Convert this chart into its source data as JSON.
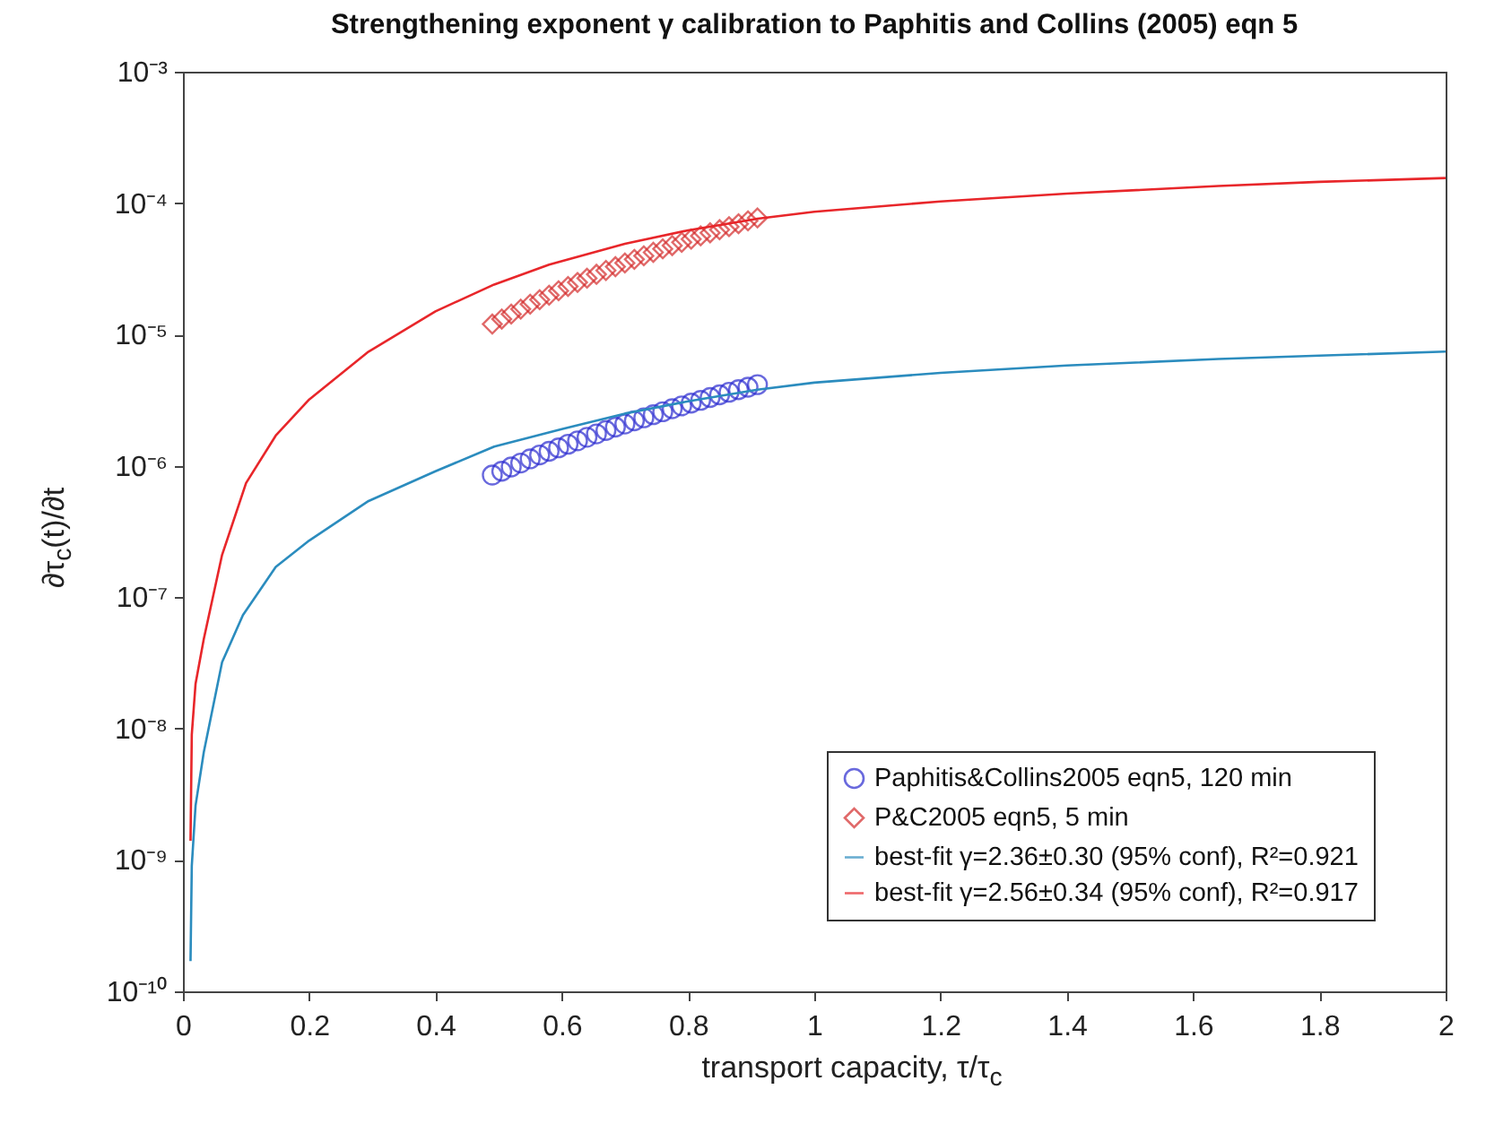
{
  "chart_data": {
    "type": "scatter",
    "title": "Strengthening exponent γ calibration to Paphitis and Collins (2005) eqn 5",
    "xlabel": "transport capacity, τ/τ$_{c}$",
    "ylabel": "∂τ$_{c}$(t)/∂t",
    "log": "y",
    "grid": false,
    "legend": "bottom right",
    "xlim": [
      0,
      2
    ],
    "xticks": [
      0,
      0.2,
      0.4,
      0.6,
      0.8,
      1,
      1.2,
      1.4,
      1.6,
      1.8,
      2
    ],
    "ylim": [
      1e-10,
      0.001
    ],
    "yticks": [
      {
        "value": 1e-10,
        "label": "10⁻¹⁰"
      },
      {
        "value": 1e-09,
        "label": "10⁻⁹"
      },
      {
        "value": 1e-08,
        "label": "10⁻⁸"
      },
      {
        "value": 1e-07,
        "label": "10⁻⁷"
      },
      {
        "value": 1e-06,
        "label": "10⁻⁶"
      },
      {
        "value": 1e-05,
        "label": "10⁻⁵"
      },
      {
        "value": 0.0001,
        "label": "10⁻⁴"
      },
      {
        "value": 0.001,
        "label": "10⁻³"
      }
    ],
    "series": [
      {
        "name": "Paphitis&Collins2005 eqn5, 120 min",
        "marker": "circle",
        "color": "#2a2ad0",
        "x": [
          0.49,
          0.505,
          0.52,
          0.535,
          0.55,
          0.565,
          0.58,
          0.595,
          0.61,
          0.625,
          0.64,
          0.655,
          0.67,
          0.685,
          0.7,
          0.715,
          0.73,
          0.745,
          0.76,
          0.775,
          0.79,
          0.805,
          0.82,
          0.835,
          0.85,
          0.865,
          0.88,
          0.895,
          0.91
        ],
        "values": [
          8.5e-07,
          9.1e-07,
          9.8e-07,
          1.05e-06,
          1.13e-06,
          1.21e-06,
          1.29e-06,
          1.37e-06,
          1.46e-06,
          1.55e-06,
          1.65e-06,
          1.75e-06,
          1.86e-06,
          1.97e-06,
          2.08e-06,
          2.2e-06,
          2.32e-06,
          2.45e-06,
          2.58e-06,
          2.72e-06,
          2.86e-06,
          3e-06,
          3.15e-06,
          3.31e-06,
          3.47e-06,
          3.63e-06,
          3.8e-06,
          3.97e-06,
          4.15e-06
        ]
      },
      {
        "name": "P&C2005 eqn5, 5 min",
        "marker": "diamond",
        "color": "#d42a2a",
        "x": [
          0.49,
          0.505,
          0.52,
          0.535,
          0.55,
          0.565,
          0.58,
          0.595,
          0.61,
          0.625,
          0.64,
          0.655,
          0.67,
          0.685,
          0.7,
          0.715,
          0.73,
          0.745,
          0.76,
          0.775,
          0.79,
          0.805,
          0.82,
          0.835,
          0.85,
          0.865,
          0.88,
          0.895,
          0.91
        ],
        "values": [
          1.2e-05,
          1.31e-05,
          1.43e-05,
          1.56e-05,
          1.7e-05,
          1.84e-05,
          1.99e-05,
          2.15e-05,
          2.32e-05,
          2.49e-05,
          2.68e-05,
          2.87e-05,
          3.07e-05,
          3.28e-05,
          3.5e-05,
          3.73e-05,
          3.97e-05,
          4.22e-05,
          4.48e-05,
          4.75e-05,
          5.03e-05,
          5.32e-05,
          5.63e-05,
          5.94e-05,
          6.27e-05,
          6.61e-05,
          6.96e-05,
          7.33e-05,
          7.71e-05
        ]
      },
      {
        "name": "best-fit γ=2.36±0.30 (95% conf), R²=0.921",
        "type": "line",
        "marker": "none",
        "color": "#2b8cbe",
        "x": [
          0.012,
          0.014,
          0.02,
          0.033,
          0.062,
          0.095,
          0.147,
          0.2,
          0.294,
          0.4,
          0.493,
          0.6,
          0.7,
          0.8,
          0.91,
          1.0,
          1.2,
          1.4,
          1.64,
          1.8,
          2.0
        ],
        "values": [
          1.7e-10,
          9e-10,
          2.6e-09,
          6.6e-09,
          3.2e-08,
          7.3e-08,
          1.7e-07,
          2.7e-07,
          5.4e-07,
          9.1e-07,
          1.4e-06,
          1.9e-06,
          2.5e-06,
          3.1e-06,
          3.8e-06,
          4.3e-06,
          5.1e-06,
          5.8e-06,
          6.5e-06,
          6.9e-06,
          7.4e-06
        ]
      },
      {
        "name": "best-fit γ=2.56±0.34 (95% conf), R²=0.917",
        "type": "line",
        "marker": "none",
        "color": "#e8262a",
        "x": [
          0.012,
          0.014,
          0.02,
          0.033,
          0.062,
          0.1,
          0.147,
          0.2,
          0.294,
          0.4,
          0.493,
          0.58,
          0.7,
          0.8,
          0.91,
          1.0,
          1.2,
          1.4,
          1.64,
          1.8,
          2.0
        ],
        "values": [
          1.4e-09,
          9e-09,
          2.2e-08,
          4.8e-08,
          2.1e-07,
          7.4e-07,
          1.7e-06,
          3.2e-06,
          7.4e-06,
          1.5e-05,
          2.4e-05,
          3.4e-05,
          4.9e-05,
          6.2e-05,
          7.6e-05,
          8.6e-05,
          0.000103,
          0.000118,
          0.000135,
          0.000145,
          0.000155
        ]
      }
    ]
  }
}
